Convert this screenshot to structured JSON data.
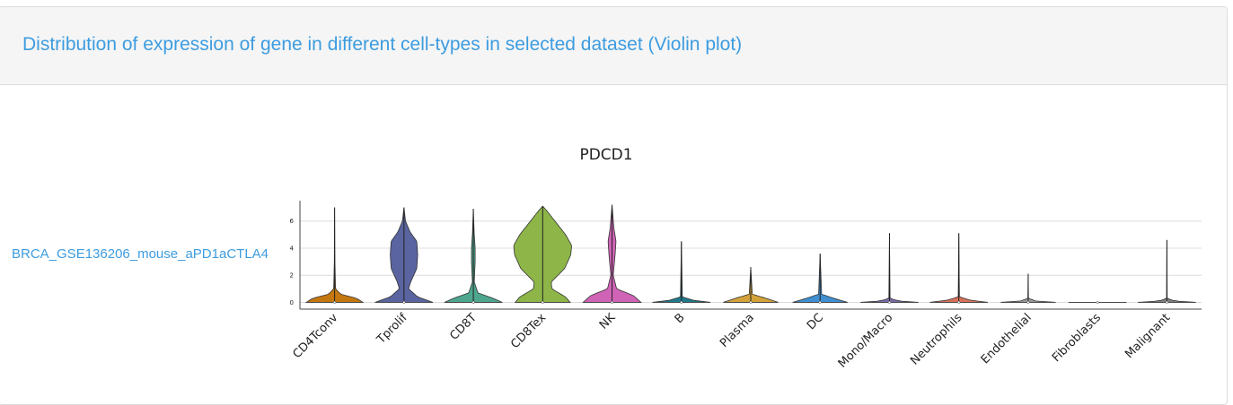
{
  "panel": {
    "title": "Distribution of expression of gene in different cell-types in selected dataset (Violin plot)"
  },
  "row_label": "BRCA_GSE136206_mouse_aPD1aCTLA4",
  "chart_data": {
    "type": "violin",
    "title": "PDCD1",
    "xlabel": "",
    "ylabel": "",
    "ylim": [
      -0.5,
      7.5
    ],
    "yticks": [
      0,
      2,
      4,
      6
    ],
    "grid": true,
    "categories": [
      "CD4Tconv",
      "Tprolif",
      "CD8T",
      "CD8Tex",
      "NK",
      "B",
      "Plasma",
      "DC",
      "Mono/Macro",
      "Neutrophils",
      "Endothelial",
      "Fibroblasts",
      "Malignant"
    ],
    "colors": [
      "#c5770f",
      "#5a64a0",
      "#4ea68f",
      "#8db548",
      "#cf63b5",
      "#1f7a8c",
      "#d4a23a",
      "#3f8fd1",
      "#7a6aa8",
      "#d9705a",
      "#9a9a9a",
      "#b8b8b8",
      "#7f7f7f"
    ],
    "max_values": [
      7.0,
      7.0,
      6.9,
      7.1,
      7.2,
      4.5,
      2.6,
      3.6,
      5.1,
      5.1,
      2.1,
      0.0,
      4.6
    ],
    "violins": [
      {
        "profile": [
          [
            0,
            0.93
          ],
          [
            0.3,
            0.72
          ],
          [
            0.6,
            0.2
          ],
          [
            1,
            0.03
          ],
          [
            3,
            0.01
          ],
          [
            7.0,
            0.0
          ]
        ]
      },
      {
        "profile": [
          [
            0,
            0.95
          ],
          [
            0.4,
            0.45
          ],
          [
            1,
            0.15
          ],
          [
            1.5,
            0.22
          ],
          [
            2.5,
            0.42
          ],
          [
            3.5,
            0.45
          ],
          [
            4.5,
            0.42
          ],
          [
            5.2,
            0.2
          ],
          [
            6,
            0.05
          ],
          [
            7.0,
            0.0
          ]
        ]
      },
      {
        "profile": [
          [
            0,
            0.95
          ],
          [
            0.3,
            0.65
          ],
          [
            0.7,
            0.15
          ],
          [
            1.5,
            0.03
          ],
          [
            3,
            0.06
          ],
          [
            4,
            0.06
          ],
          [
            5,
            0.03
          ],
          [
            6.9,
            0.0
          ]
        ]
      },
      {
        "profile": [
          [
            0,
            0.9
          ],
          [
            0.4,
            0.75
          ],
          [
            1,
            0.3
          ],
          [
            1.5,
            0.28
          ],
          [
            2.5,
            0.72
          ],
          [
            3.5,
            0.92
          ],
          [
            4.2,
            0.95
          ],
          [
            5,
            0.75
          ],
          [
            6,
            0.4
          ],
          [
            6.8,
            0.12
          ],
          [
            7.1,
            0.0
          ]
        ]
      },
      {
        "profile": [
          [
            0,
            0.95
          ],
          [
            0.5,
            0.7
          ],
          [
            1,
            0.15
          ],
          [
            2,
            0.04
          ],
          [
            3.5,
            0.1
          ],
          [
            4.5,
            0.13
          ],
          [
            5.5,
            0.06
          ],
          [
            7.2,
            0.0
          ]
        ]
      },
      {
        "profile": [
          [
            0,
            0.95
          ],
          [
            0.15,
            0.4
          ],
          [
            0.4,
            0.03
          ],
          [
            4.5,
            0.0
          ]
        ]
      },
      {
        "profile": [
          [
            0,
            0.9
          ],
          [
            0.3,
            0.5
          ],
          [
            0.6,
            0.05
          ],
          [
            2.6,
            0.0
          ]
        ]
      },
      {
        "profile": [
          [
            0,
            0.9
          ],
          [
            0.3,
            0.45
          ],
          [
            0.6,
            0.05
          ],
          [
            3.6,
            0.0
          ]
        ]
      },
      {
        "profile": [
          [
            0,
            0.95
          ],
          [
            0.1,
            0.3
          ],
          [
            0.3,
            0.02
          ],
          [
            5.1,
            0.0
          ]
        ]
      },
      {
        "profile": [
          [
            0,
            0.95
          ],
          [
            0.15,
            0.4
          ],
          [
            0.4,
            0.02
          ],
          [
            5.1,
            0.0
          ]
        ]
      },
      {
        "profile": [
          [
            0,
            0.9
          ],
          [
            0.1,
            0.25
          ],
          [
            0.3,
            0.01
          ],
          [
            2.1,
            0.0
          ]
        ]
      },
      {
        "profile": [
          [
            0,
            0.95
          ],
          [
            0.05,
            0.3
          ],
          [
            0.1,
            0.0
          ]
        ]
      },
      {
        "profile": [
          [
            0,
            0.95
          ],
          [
            0.1,
            0.25
          ],
          [
            0.3,
            0.01
          ],
          [
            4.6,
            0.0
          ]
        ]
      }
    ]
  }
}
